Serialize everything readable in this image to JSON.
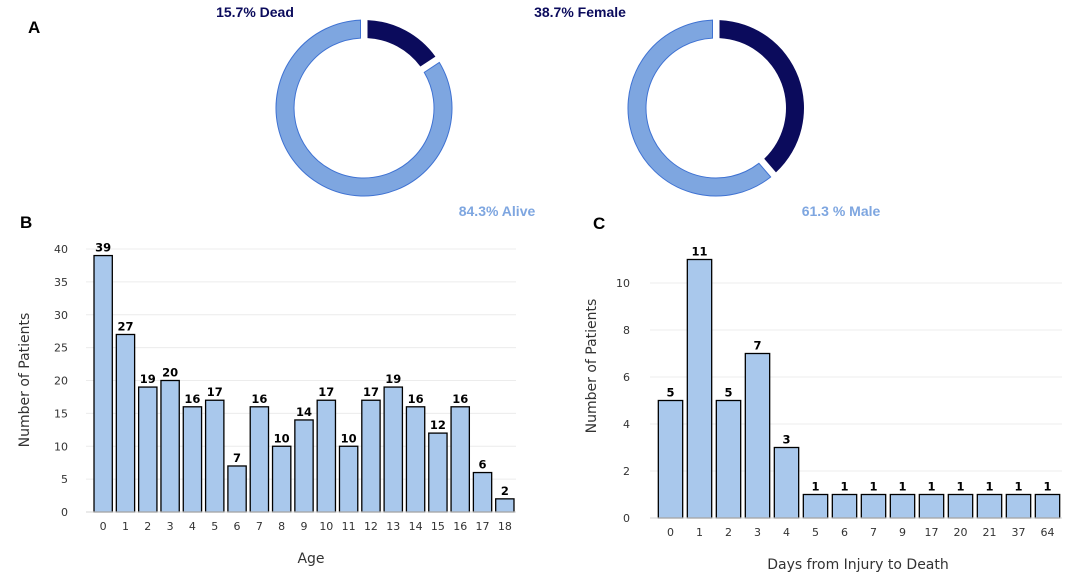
{
  "panel_labels": {
    "a": "A",
    "b": "B",
    "c": "C"
  },
  "colors": {
    "dark": "#0b0b5c",
    "light": "#7ea6e0",
    "bar": "#a9c8ec",
    "bar_edge": "#000000",
    "grid": "#ececec"
  },
  "chart_data": [
    {
      "type": "pie",
      "variant": "donut",
      "title": "",
      "slices": [
        {
          "label": "Dead",
          "value": 15.7,
          "text": "15.7% Dead"
        },
        {
          "label": "Alive",
          "value": 84.3,
          "text": "84.3% Alive"
        }
      ]
    },
    {
      "type": "pie",
      "variant": "donut",
      "title": "",
      "slices": [
        {
          "label": "Female",
          "value": 38.7,
          "text": "38.7% Female"
        },
        {
          "label": "Male",
          "value": 61.3,
          "text": "61.3 % Male"
        }
      ]
    },
    {
      "type": "bar",
      "title": "",
      "xlabel": "Age",
      "ylabel": "Number of Patients",
      "ylim": [
        0,
        40
      ],
      "yticks": [
        0,
        5,
        10,
        15,
        20,
        25,
        30,
        35,
        40
      ],
      "categories": [
        "0",
        "1",
        "2",
        "3",
        "4",
        "5",
        "6",
        "7",
        "8",
        "9",
        "10",
        "11",
        "12",
        "13",
        "14",
        "15",
        "16",
        "17",
        "18"
      ],
      "values": [
        39,
        27,
        19,
        20,
        16,
        17,
        7,
        16,
        10,
        14,
        17,
        10,
        17,
        19,
        16,
        12,
        16,
        6,
        2
      ],
      "data_labels": [
        "39",
        "27",
        "19",
        "20",
        "16",
        "17",
        "7",
        "16",
        "10",
        "14",
        "17",
        "10",
        "17",
        "19",
        "16",
        "12",
        "16",
        "6",
        "2"
      ],
      "grid": true
    },
    {
      "type": "bar",
      "title": "",
      "xlabel": "Days from Injury to Death",
      "ylabel": "Number of Patients",
      "ylim": [
        0,
        12
      ],
      "yticks": [
        0,
        2,
        4,
        6,
        8,
        10
      ],
      "categories": [
        "0",
        "1",
        "2",
        "3",
        "4",
        "5",
        "6",
        "7",
        "9",
        "17",
        "20",
        "21",
        "37",
        "64"
      ],
      "values": [
        5,
        11,
        5,
        7,
        3,
        1,
        1,
        1,
        1,
        1,
        1,
        1,
        1,
        1
      ],
      "data_labels": [
        "5",
        "11",
        "5",
        "7",
        "3",
        "1",
        "1",
        "1",
        "1",
        "1",
        "1",
        "1",
        "1",
        "1"
      ],
      "grid": true
    }
  ]
}
